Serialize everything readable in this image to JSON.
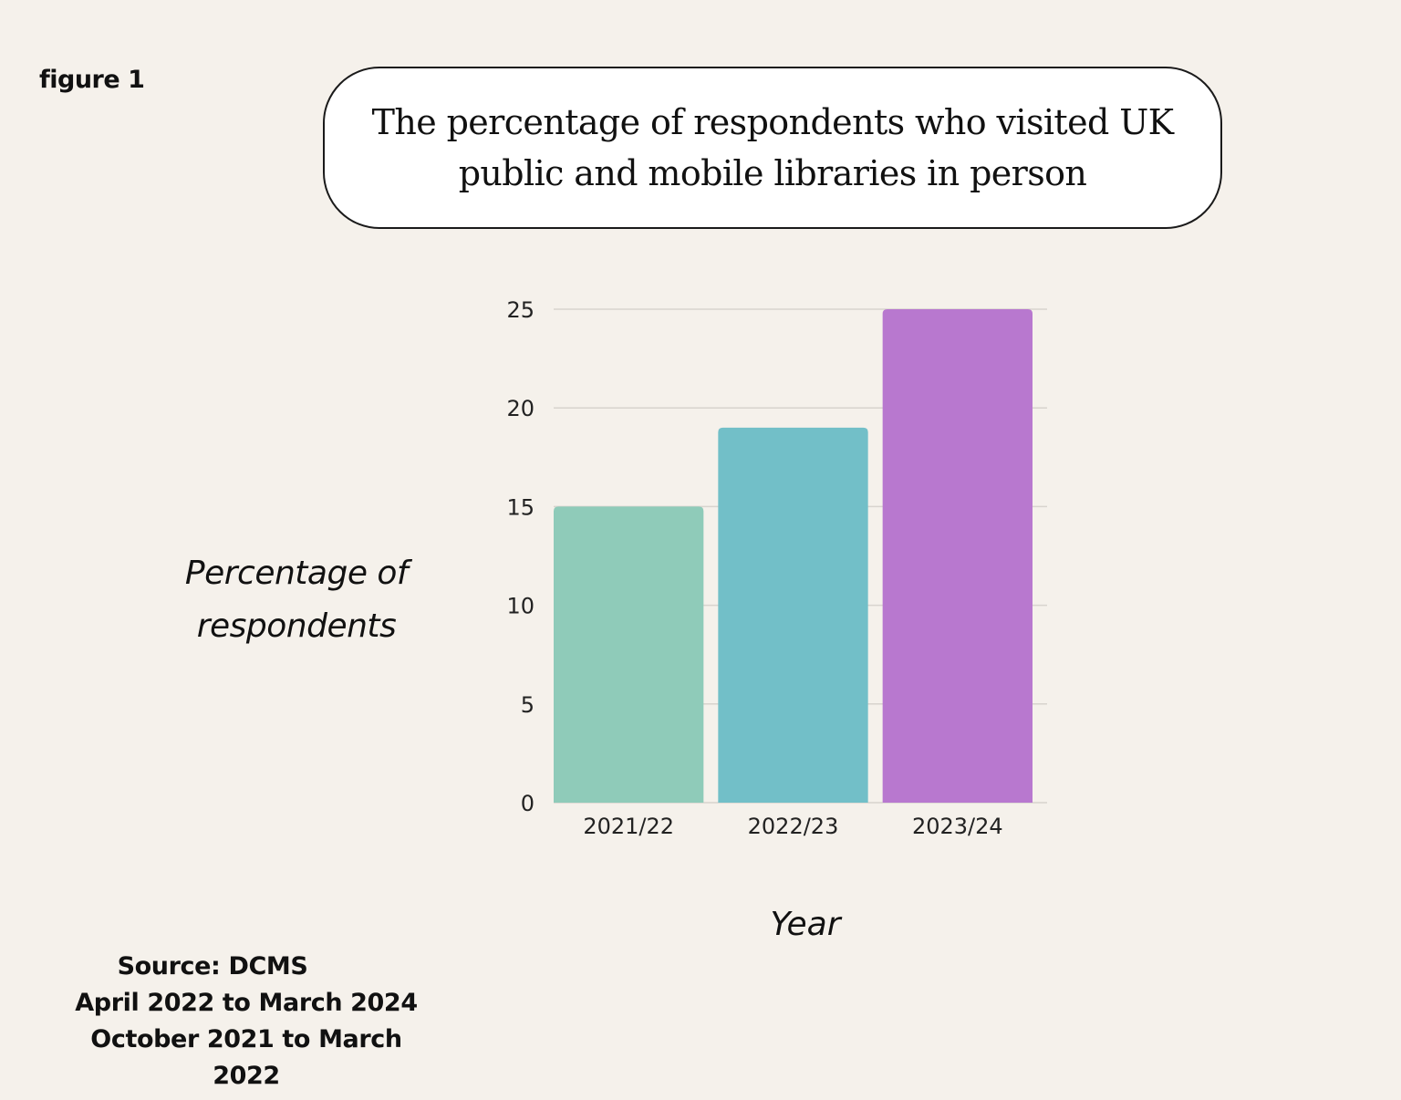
{
  "figure_label": "figure 1",
  "source": {
    "line1": "Source: DCMS",
    "line2": "April 2022 to March 2024",
    "line3": "October 2021 to March",
    "line4": "2022"
  },
  "chart_data": {
    "type": "bar",
    "title": "The percentage of respondents who visited UK public and mobile libraries in person",
    "xlabel": "Year",
    "ylabel": "Percentage of respondents",
    "categories": [
      "2021/22",
      "2022/23",
      "2023/24"
    ],
    "values": [
      15,
      19,
      25
    ],
    "colors": [
      "#8fcbb9",
      "#72bfc8",
      "#b878cf"
    ],
    "ylim": [
      0,
      25
    ],
    "yticks": [
      0,
      5,
      10,
      15,
      20,
      25
    ],
    "grid": true,
    "legend": "none"
  }
}
